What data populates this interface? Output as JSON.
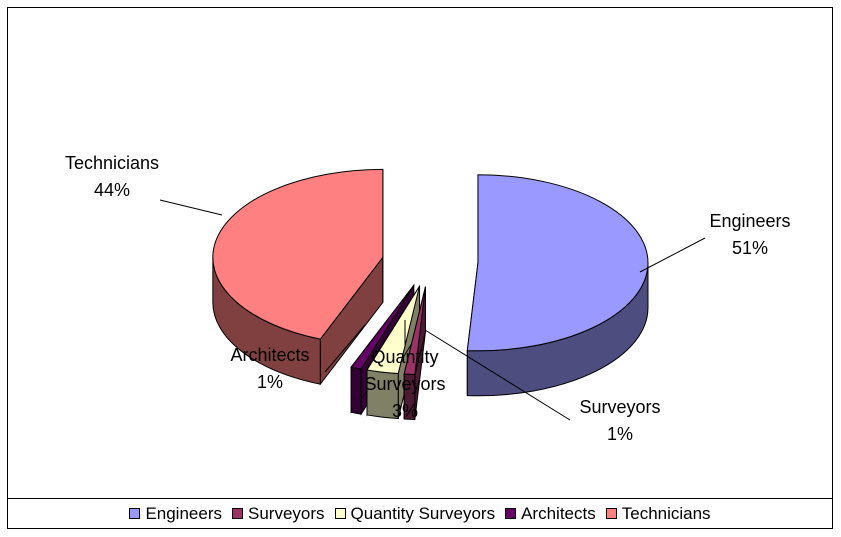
{
  "chart_data": {
    "type": "pie3d",
    "categories": [
      "Engineers",
      "Surveyors",
      "Quantity Surveyors",
      "Architects",
      "Technicians"
    ],
    "values": [
      51,
      1,
      3,
      1,
      44
    ],
    "value_labels": [
      "51%",
      "1%",
      "3%",
      "1%",
      "44%"
    ],
    "colors": [
      "#9999ff",
      "#993366",
      "#ffffcc",
      "#660066",
      "#ff8080"
    ],
    "legend": "bottom"
  }
}
